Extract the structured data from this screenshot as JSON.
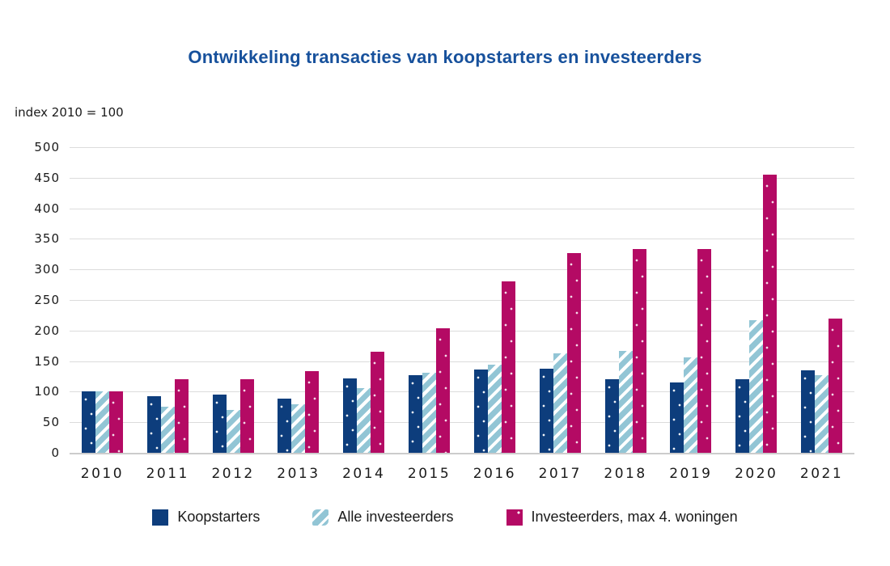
{
  "title": "Ontwikkeling transacties van koopstarters en investeerders",
  "unit_note": "index 2010 = 100",
  "colors": {
    "title": "#17519c",
    "koopstarters": "#0d3d7c",
    "alle_investeerders": "#92c5d5",
    "investeerders_max4": "#b40a64",
    "gridline": "#dcdcdc",
    "text": "#1a1a1a"
  },
  "chart_data": {
    "type": "bar",
    "title": "Ontwikkeling transacties van koopstarters en investeerders",
    "unit_note": "index 2010 = 100",
    "xlabel": "",
    "ylabel": "index 2010 = 100",
    "ylim": [
      0,
      500
    ],
    "yticks": [
      0,
      50,
      100,
      150,
      200,
      250,
      300,
      350,
      400,
      450,
      500
    ],
    "grid": true,
    "legend_position": "bottom",
    "categories": [
      "2010",
      "2011",
      "2012",
      "2013",
      "2014",
      "2015",
      "2016",
      "2017",
      "2018",
      "2019",
      "2020",
      "2021"
    ],
    "series": [
      {
        "name": "Koopstarters",
        "color": "#0d3d7c",
        "pattern": "white-dots",
        "values": [
          100,
          93,
          95,
          88,
          122,
          127,
          136,
          138,
          120,
          115,
          120,
          135
        ]
      },
      {
        "name": "Alle investeerders",
        "color": "#92c5d5",
        "pattern": "white-diagonal-stripes",
        "values": [
          100,
          75,
          70,
          80,
          106,
          131,
          144,
          163,
          167,
          156,
          217,
          127
        ]
      },
      {
        "name": "Investeerders, max 4. woningen",
        "color": "#b40a64",
        "pattern": "white-dots",
        "values": [
          100,
          120,
          120,
          134,
          165,
          204,
          281,
          327,
          333,
          333,
          455,
          220
        ]
      }
    ]
  }
}
